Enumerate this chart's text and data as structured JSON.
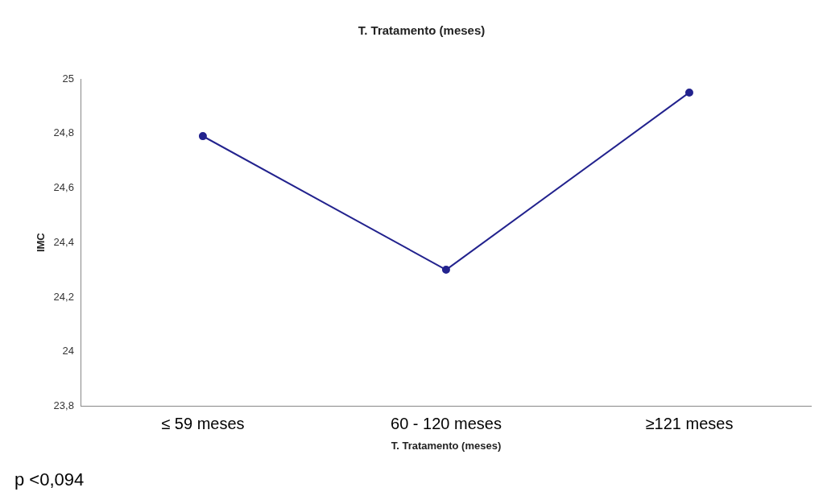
{
  "chart_data": {
    "type": "line",
    "title": "T. Tratamento (meses)",
    "xlabel": "T. Tratamento (meses)",
    "ylabel": "IMC",
    "categories": [
      "≤ 59 meses",
      "60 - 120 meses",
      "≥121 meses"
    ],
    "series": [
      {
        "color": "#23238e",
        "values": [
          24.79,
          24.3,
          24.95
        ]
      }
    ],
    "ylim": [
      23.8,
      25
    ],
    "yticks": [
      {
        "value": 23.8,
        "label": "23,8"
      },
      24,
      {
        "value": 24.2,
        "label": "24,2"
      },
      {
        "value": 24.4,
        "label": "24,4"
      },
      {
        "value": 24.6,
        "label": "24,6"
      },
      {
        "value": 24.8,
        "label": "24,8"
      },
      25
    ],
    "grid": false,
    "legend": false,
    "marker": "circle",
    "line_style": "solid",
    "annotations": [
      "p <0,094"
    ]
  }
}
